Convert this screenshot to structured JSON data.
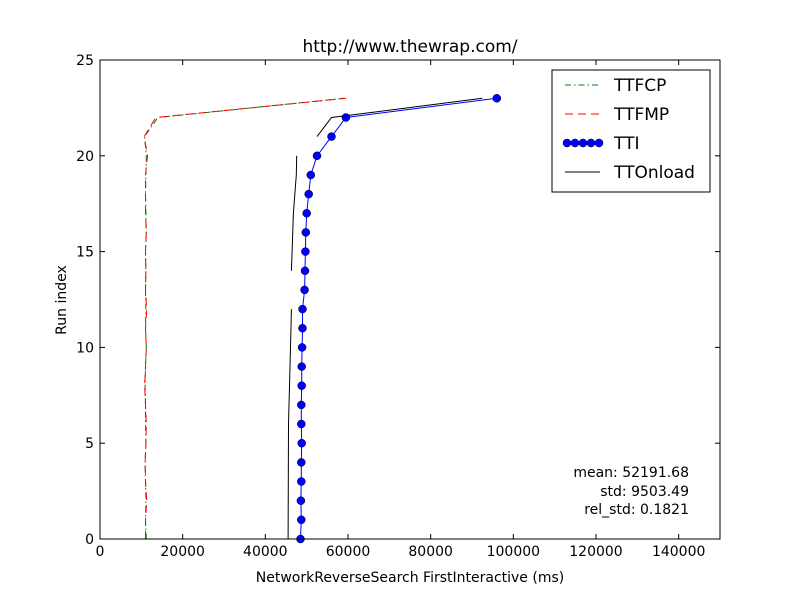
{
  "chart_data": {
    "type": "line",
    "title": "http://www.thewrap.com/",
    "xlabel": "NetworkReverseSearch FirstInteractive (ms)",
    "ylabel": "Run index",
    "xlim": [
      0,
      150000
    ],
    "ylim": [
      0,
      25
    ],
    "xticks": [
      0,
      20000,
      40000,
      60000,
      80000,
      100000,
      120000,
      140000
    ],
    "yticks": [
      0,
      5,
      10,
      15,
      20,
      25
    ],
    "xtick_labels": [
      "0",
      "20000",
      "40000",
      "60000",
      "80000",
      "100000",
      "120000",
      "140000"
    ],
    "ytick_labels": [
      "0",
      "5",
      "10",
      "15",
      "20",
      "25"
    ],
    "grid": false,
    "legend_position": "top-right",
    "series": [
      {
        "name": "TTFCP",
        "color": "#008000",
        "style": "dash-dot",
        "points": [
          [
            11200,
            0
          ],
          [
            11000,
            1
          ],
          [
            11100,
            2
          ],
          [
            11000,
            3
          ],
          [
            10900,
            4
          ],
          [
            11100,
            5
          ],
          [
            11000,
            6
          ],
          [
            11000,
            7
          ],
          [
            10900,
            8
          ],
          [
            11000,
            9
          ],
          [
            11200,
            10
          ],
          [
            11000,
            11
          ],
          [
            11100,
            12
          ],
          [
            11000,
            13
          ],
          [
            11100,
            14
          ],
          [
            11000,
            15
          ],
          [
            11200,
            16
          ],
          [
            11100,
            17
          ],
          [
            11000,
            18
          ],
          [
            11100,
            19
          ],
          [
            11200,
            20
          ],
          [
            10800,
            21
          ],
          [
            14000,
            22
          ],
          [
            59000,
            23
          ]
        ]
      },
      {
        "name": "TTFMP",
        "color": "#ff0000",
        "style": "dashed",
        "points": [
          [
            11000,
            0
          ],
          [
            11000,
            1
          ],
          [
            11300,
            2
          ],
          [
            11000,
            3
          ],
          [
            10900,
            4
          ],
          [
            11100,
            5
          ],
          [
            11200,
            6
          ],
          [
            11000,
            7
          ],
          [
            10800,
            8
          ],
          [
            11000,
            9
          ],
          [
            11200,
            10
          ],
          [
            11000,
            11
          ],
          [
            11300,
            12
          ],
          [
            11000,
            13
          ],
          [
            11100,
            14
          ],
          [
            11000,
            15
          ],
          [
            11200,
            16
          ],
          [
            11000,
            17
          ],
          [
            11000,
            18
          ],
          [
            11000,
            19
          ],
          [
            11500,
            20
          ],
          [
            10700,
            21
          ],
          [
            13500,
            22
          ],
          [
            59500,
            23
          ]
        ]
      },
      {
        "name": "TTI",
        "color": "#0000ff",
        "style": "solid-markers",
        "points": [
          [
            48500,
            0
          ],
          [
            48700,
            1
          ],
          [
            48600,
            2
          ],
          [
            48700,
            3
          ],
          [
            48700,
            4
          ],
          [
            48800,
            5
          ],
          [
            48700,
            6
          ],
          [
            48700,
            7
          ],
          [
            48800,
            8
          ],
          [
            48800,
            9
          ],
          [
            48900,
            10
          ],
          [
            49000,
            11
          ],
          [
            49000,
            12
          ],
          [
            49500,
            13
          ],
          [
            49600,
            14
          ],
          [
            49700,
            15
          ],
          [
            49800,
            16
          ],
          [
            50000,
            17
          ],
          [
            50500,
            18
          ],
          [
            51000,
            19
          ],
          [
            52500,
            20
          ],
          [
            56000,
            21
          ],
          [
            59500,
            22
          ],
          [
            96000,
            23
          ]
        ]
      },
      {
        "name": "TTOnload",
        "color": "#000000",
        "style": "solid",
        "segments": [
          [
            [
              45500,
              0
            ],
            [
              45600,
              6
            ],
            [
              46200,
              11
            ],
            [
              46300,
              12
            ]
          ],
          [
            [
              46300,
              14
            ],
            [
              46800,
              17
            ],
            [
              47500,
              19
            ],
            [
              47600,
              20
            ]
          ],
          [
            [
              52500,
              21
            ],
            [
              56000,
              22
            ],
            [
              92500,
              23
            ]
          ]
        ]
      }
    ],
    "annotations": {
      "mean": "mean: 52191.68",
      "std": "std: 9503.49",
      "rel_std": "rel_std: 0.1821"
    }
  }
}
